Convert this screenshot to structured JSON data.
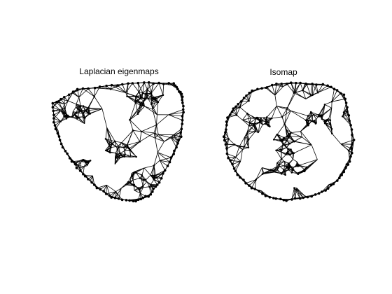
{
  "figure": {
    "panels": [
      {
        "title": "Laplacian eigenmaps",
        "mesh_style": "dense-triangulated-face-mesh"
      },
      {
        "title": "Isomap",
        "mesh_style": "triangulated-face-mesh"
      }
    ],
    "colors": {
      "background": "#ffffff",
      "mesh": "#000000"
    }
  }
}
